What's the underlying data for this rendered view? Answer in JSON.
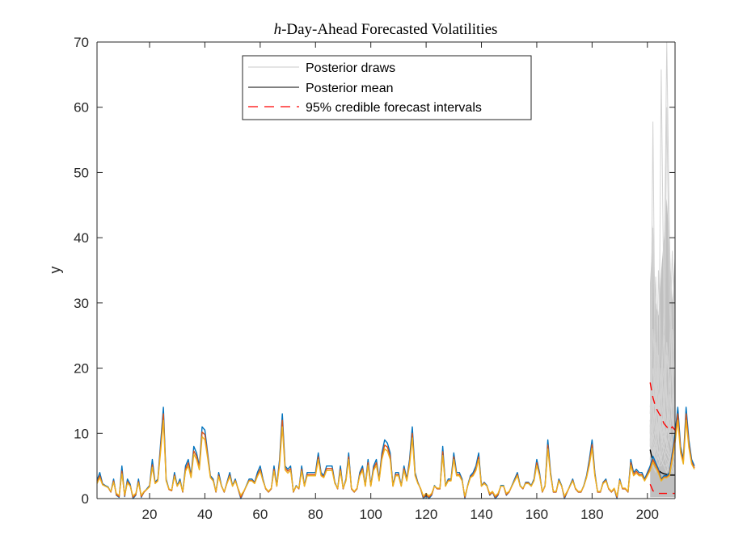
{
  "chart_data": {
    "type": "line",
    "title_italic": "h",
    "title_rest": "-Day-Ahead Forecasted Volatilities",
    "xlabel": "",
    "ylabel": "y",
    "xlim": [
      1,
      210
    ],
    "ylim": [
      0,
      70
    ],
    "xticks": [
      20,
      40,
      60,
      80,
      100,
      120,
      140,
      160,
      180,
      200
    ],
    "xtick_labels": [
      "20",
      "40",
      "60",
      "80",
      "100",
      "120",
      "140",
      "160",
      "180",
      "200"
    ],
    "yticks": [
      0,
      10,
      20,
      30,
      40,
      50,
      60,
      70
    ],
    "ytick_labels": [
      "0",
      "10",
      "20",
      "30",
      "40",
      "50",
      "60",
      "70"
    ],
    "grid": false,
    "legend": {
      "placement": "top-center",
      "entries": [
        {
          "label": "Posterior draws",
          "color": "#c8c8c8",
          "style": "solid"
        },
        {
          "label": "Posterior mean",
          "color": "#000000",
          "style": "solid"
        },
        {
          "label": "95% credible forecast intervals",
          "color": "#ff0000",
          "style": "dashed"
        }
      ]
    },
    "observed": {
      "x_start": 1,
      "series": [
        {
          "name": "observed-1",
          "color": "#0072bd",
          "values": [
            2.8,
            4.0,
            2.3,
            2.0,
            1.8,
            1.0,
            3.0,
            0.5,
            0.2,
            5.0,
            0.3,
            3.0,
            2.2,
            0.0,
            0.5,
            3.0,
            0.2,
            1.0,
            1.5,
            2.0,
            6.0,
            2.5,
            3.0,
            8.5,
            14.0,
            3.0,
            1.5,
            1.2,
            4.0,
            2.0,
            3.0,
            1.0,
            5.0,
            6.0,
            3.5,
            8.0,
            7.0,
            5.0,
            11.0,
            10.5,
            7.0,
            3.5,
            3.0,
            1.0,
            4.0,
            2.0,
            1.0,
            2.5,
            4.0,
            2.0,
            3.0,
            1.5,
            0.0,
            1.0,
            2.0,
            3.0,
            3.0,
            2.5,
            4.0,
            5.0,
            3.0,
            1.5,
            1.0,
            1.5,
            5.0,
            2.0,
            6.0,
            13.0,
            5.0,
            4.5,
            5.0,
            1.0,
            2.0,
            1.5,
            5.0,
            2.0,
            4.0,
            4.0,
            4.0,
            4.0,
            7.0,
            4.0,
            3.5,
            5.0,
            5.0,
            5.0,
            2.5,
            1.5,
            5.0,
            1.5,
            3.0,
            7.0,
            1.5,
            1.0,
            1.5,
            4.0,
            5.0,
            2.0,
            6.0,
            2.0,
            5.0,
            6.0,
            3.0,
            7.0,
            9.0,
            8.5,
            7.0,
            2.0,
            4.0,
            4.0,
            2.0,
            5.0,
            3.0,
            6.0,
            11.0,
            4.0,
            2.5,
            1.5,
            0.0,
            0.5,
            0.0,
            0.5,
            2.0,
            1.5,
            1.5,
            8.0,
            2.0,
            3.0,
            3.0,
            7.0,
            4.0,
            4.0,
            3.0,
            0.0,
            2.0,
            3.5,
            4.0,
            5.0,
            7.0,
            2.0,
            2.5,
            2.0,
            0.5,
            1.0,
            0.0,
            0.5,
            2.0,
            2.0,
            0.5,
            1.0,
            2.0,
            3.0,
            4.0,
            2.0,
            1.5,
            2.5,
            2.5,
            2.0,
            3.0,
            6.0,
            4.0,
            1.0,
            2.0,
            9.0,
            4.0,
            1.0,
            1.0,
            3.0,
            2.0,
            0.0,
            1.0,
            2.0,
            3.0,
            1.5,
            1.0,
            1.0,
            2.0,
            3.5,
            6.0,
            9.0,
            4.0,
            1.0,
            1.0,
            2.5,
            3.0,
            1.5,
            1.0,
            1.5,
            0.0,
            3.0,
            1.5,
            1.5,
            1.0,
            6.0,
            4.0,
            4.5,
            4.0,
            4.0,
            3.0,
            4.0,
            5.0,
            6.5,
            5.5,
            4.5,
            3.0,
            3.5,
            3.5,
            4.0,
            7.0,
            10.0,
            14.0,
            8.0,
            6.0,
            14.0,
            9.0,
            6.0,
            5.0
          ]
        },
        {
          "name": "observed-2",
          "color": "#d95319",
          "values": [
            2.5,
            3.5,
            2.2,
            1.9,
            1.7,
            1.0,
            2.7,
            0.6,
            0.3,
            4.2,
            0.4,
            2.6,
            2.0,
            0.2,
            0.6,
            2.6,
            0.3,
            1.0,
            1.4,
            1.9,
            5.2,
            2.4,
            2.8,
            7.8,
            13.0,
            2.8,
            1.4,
            1.2,
            3.6,
            1.9,
            2.7,
            1.0,
            4.5,
            5.5,
            3.3,
            7.3,
            6.5,
            4.7,
            10.2,
            9.8,
            6.6,
            3.3,
            2.8,
            1.0,
            3.6,
            1.9,
            1.0,
            2.4,
            3.6,
            1.9,
            2.8,
            1.5,
            0.2,
            1.0,
            1.9,
            2.8,
            2.8,
            2.4,
            3.6,
            4.5,
            2.8,
            1.5,
            1.0,
            1.5,
            4.5,
            1.9,
            5.5,
            12.0,
            4.7,
            4.2,
            4.6,
            1.0,
            1.9,
            1.5,
            4.5,
            1.9,
            3.7,
            3.7,
            3.7,
            3.7,
            6.4,
            3.7,
            3.3,
            4.6,
            4.6,
            4.6,
            2.4,
            1.5,
            4.5,
            1.5,
            2.8,
            6.4,
            1.5,
            1.0,
            1.5,
            3.7,
            4.6,
            1.9,
            5.5,
            1.9,
            4.6,
            5.5,
            2.8,
            6.5,
            8.2,
            7.9,
            6.5,
            1.9,
            3.7,
            3.7,
            1.9,
            4.6,
            2.8,
            5.5,
            10.0,
            3.7,
            2.4,
            1.5,
            0.2,
            0.6,
            0.2,
            0.6,
            1.9,
            1.5,
            1.5,
            7.2,
            1.9,
            2.8,
            2.8,
            6.4,
            3.7,
            3.7,
            2.8,
            0.2,
            1.9,
            3.3,
            3.7,
            4.6,
            6.4,
            1.9,
            2.4,
            1.9,
            0.6,
            1.0,
            0.2,
            0.6,
            1.9,
            1.9,
            0.6,
            1.0,
            1.9,
            2.8,
            3.7,
            1.9,
            1.5,
            2.4,
            2.4,
            1.9,
            2.8,
            5.5,
            3.7,
            1.0,
            1.9,
            8.2,
            3.7,
            1.0,
            1.0,
            2.8,
            1.9,
            0.2,
            1.0,
            1.9,
            2.8,
            1.5,
            1.0,
            1.0,
            1.9,
            3.3,
            5.5,
            8.3,
            3.7,
            1.0,
            1.0,
            2.4,
            2.8,
            1.5,
            1.0,
            1.5,
            0.2,
            2.8,
            1.5,
            1.5,
            1.0,
            5.5,
            3.7,
            4.2,
            3.7,
            3.7,
            2.8,
            3.7,
            4.6,
            6.0,
            5.1,
            4.2,
            2.8,
            3.3,
            3.3,
            3.7,
            6.5,
            9.3,
            13.0,
            7.5,
            5.6,
            13.0,
            8.4,
            5.6,
            4.7
          ]
        },
        {
          "name": "observed-3",
          "color": "#edb120",
          "values": [
            2.3,
            3.2,
            2.1,
            1.9,
            1.7,
            1.1,
            2.5,
            0.8,
            0.5,
            3.8,
            0.6,
            2.4,
            1.9,
            0.4,
            0.8,
            2.4,
            0.5,
            1.1,
            1.4,
            1.8,
            4.8,
            2.3,
            2.7,
            7.2,
            12.0,
            2.7,
            1.5,
            1.3,
            3.4,
            1.9,
            2.6,
            1.1,
            4.2,
            5.0,
            3.2,
            6.8,
            6.0,
            4.4,
            9.5,
            9.0,
            6.2,
            3.2,
            2.7,
            1.1,
            3.4,
            1.9,
            1.1,
            2.3,
            3.4,
            1.9,
            2.7,
            1.6,
            0.5,
            1.1,
            1.9,
            2.7,
            2.7,
            2.3,
            3.4,
            4.2,
            2.7,
            1.6,
            1.1,
            1.6,
            4.2,
            1.9,
            5.1,
            11.0,
            4.4,
            3.9,
            4.3,
            1.1,
            1.9,
            1.6,
            4.2,
            1.9,
            3.5,
            3.5,
            3.5,
            3.5,
            6.0,
            3.5,
            3.2,
            4.3,
            4.3,
            4.3,
            2.3,
            1.6,
            4.2,
            1.6,
            2.7,
            6.0,
            1.6,
            1.1,
            1.6,
            3.5,
            4.3,
            1.9,
            5.1,
            1.9,
            4.3,
            5.1,
            2.7,
            6.0,
            7.6,
            7.3,
            6.0,
            1.9,
            3.5,
            3.5,
            1.9,
            4.3,
            2.7,
            5.1,
            9.3,
            3.5,
            2.3,
            1.6,
            0.4,
            0.8,
            0.4,
            0.8,
            1.9,
            1.6,
            1.6,
            6.6,
            1.9,
            2.7,
            2.7,
            6.0,
            3.5,
            3.5,
            2.7,
            0.4,
            1.9,
            3.2,
            3.5,
            4.3,
            6.0,
            1.9,
            2.3,
            1.9,
            0.8,
            1.1,
            0.4,
            0.8,
            1.9,
            1.9,
            0.8,
            1.1,
            1.9,
            2.7,
            3.5,
            1.9,
            1.6,
            2.3,
            2.3,
            1.9,
            2.7,
            5.1,
            3.5,
            1.1,
            1.9,
            7.6,
            3.5,
            1.1,
            1.1,
            2.7,
            1.9,
            0.4,
            1.1,
            1.9,
            2.7,
            1.6,
            1.1,
            1.1,
            1.9,
            3.2,
            5.1,
            7.7,
            3.5,
            1.1,
            1.1,
            2.3,
            2.7,
            1.6,
            1.1,
            1.6,
            0.4,
            2.7,
            1.6,
            1.6,
            1.1,
            5.1,
            3.5,
            3.9,
            3.5,
            3.5,
            2.7,
            3.5,
            4.3,
            5.6,
            4.8,
            3.9,
            2.7,
            3.2,
            3.2,
            3.5,
            6.0,
            8.6,
            12.0,
            7.0,
            5.3,
            12.0,
            7.8,
            5.3,
            4.5
          ]
        }
      ]
    },
    "forecast": {
      "x": [
        201,
        202,
        203,
        204,
        205,
        206,
        207,
        208,
        209,
        210
      ],
      "posterior_mean": [
        7.5,
        5.6,
        4.8,
        4.3,
        4.0,
        3.8,
        3.7,
        3.6,
        3.6,
        3.6
      ],
      "ci_upper": [
        17.8,
        15.5,
        14.0,
        13.2,
        12.5,
        11.5,
        11.0,
        10.5,
        11.0,
        10.5
      ],
      "ci_lower": [
        2.2,
        1.2,
        0.9,
        0.8,
        0.8,
        0.8,
        0.8,
        0.8,
        0.8,
        0.8
      ],
      "band_fill_upper": [
        33,
        42,
        30,
        28,
        35,
        40,
        46,
        39,
        30,
        38
      ],
      "posterior_draws": [
        [
          8,
          57.8,
          12,
          9,
          6,
          5,
          4,
          6,
          5,
          3
        ],
        [
          10,
          41.5,
          20,
          15,
          10,
          8,
          7,
          6,
          5,
          4
        ],
        [
          6,
          12,
          34,
          18,
          9,
          7,
          5,
          4,
          6,
          5
        ],
        [
          12,
          9,
          7,
          35,
          22,
          12,
          8,
          6,
          5,
          4
        ],
        [
          7,
          10,
          14,
          9,
          65.8,
          28,
          14,
          9,
          7,
          6
        ],
        [
          9,
          6,
          8,
          10,
          12,
          30,
          71,
          40,
          20,
          12
        ],
        [
          5,
          8,
          6,
          5,
          7,
          12,
          60,
          30,
          18,
          10
        ],
        [
          11,
          15,
          9,
          7,
          6,
          8,
          10,
          22,
          38,
          24
        ],
        [
          14,
          20,
          16,
          12,
          9,
          7,
          6,
          5,
          4,
          5
        ],
        [
          6,
          5,
          4,
          9,
          18,
          25,
          16,
          11,
          8,
          6
        ],
        [
          8,
          7,
          6,
          5,
          5,
          6,
          8,
          10,
          14,
          30
        ],
        [
          13,
          26,
          18,
          12,
          10,
          8,
          7,
          6,
          5,
          4
        ],
        [
          7,
          9,
          11,
          22,
          16,
          11,
          9,
          7,
          6,
          5
        ],
        [
          10,
          8,
          7,
          6,
          9,
          14,
          24,
          18,
          12,
          9
        ],
        [
          9,
          13,
          17,
          14,
          11,
          9,
          22,
          17,
          13,
          10
        ],
        [
          6,
          7,
          9,
          12,
          16,
          20,
          15,
          12,
          26,
          18
        ],
        [
          12,
          10,
          8,
          7,
          6,
          5,
          5,
          6,
          8,
          11
        ],
        [
          8,
          11,
          24,
          17,
          13,
          10,
          8,
          7,
          6,
          5
        ],
        [
          7,
          6,
          5,
          5,
          6,
          8,
          11,
          16,
          12,
          9
        ],
        [
          11,
          17,
          13,
          10,
          20,
          15,
          11,
          9,
          8,
          7
        ]
      ]
    }
  }
}
